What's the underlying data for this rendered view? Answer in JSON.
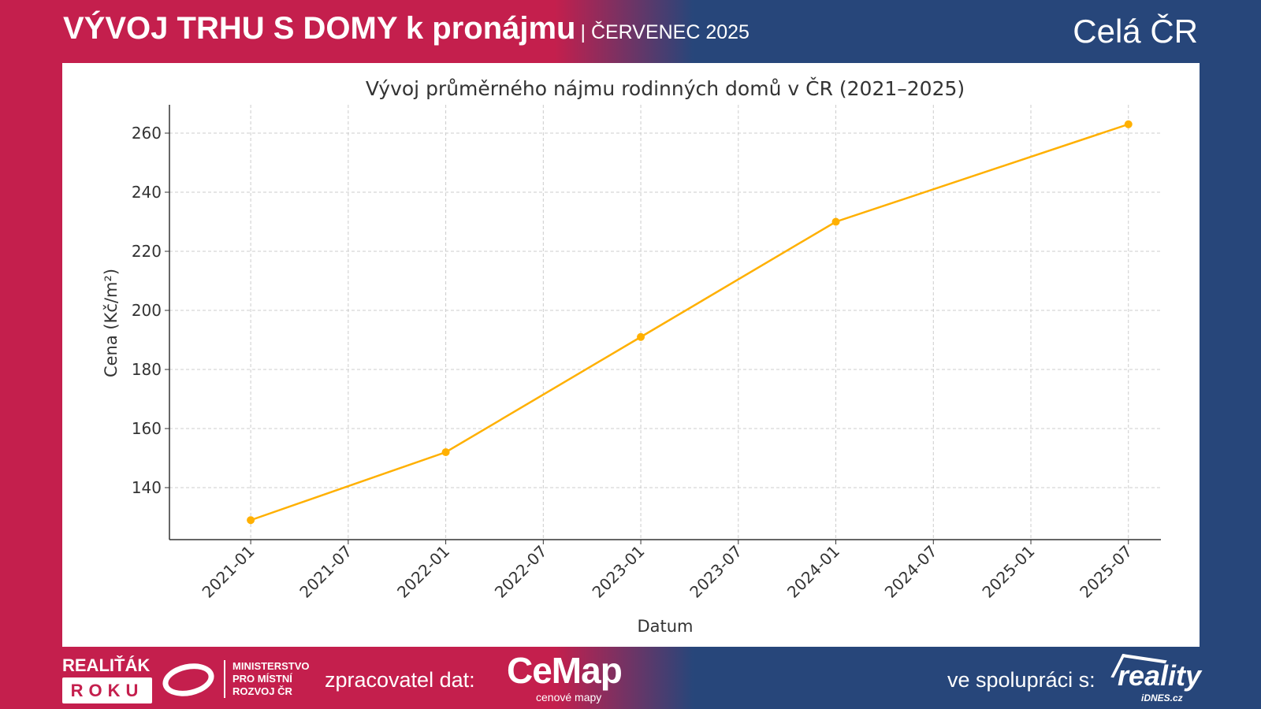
{
  "header": {
    "title": "VÝVOJ TRHU S DOMY k pronájmu",
    "subtitle": "| ČERVENEC 2025",
    "region": "Celá ČR"
  },
  "footer": {
    "badge_top": "REALIŤÁK",
    "badge_bottom": "ROKU",
    "ministry": [
      "MINISTERSTVO",
      "PRO MÍSTNÍ",
      "ROZVOJ ČR"
    ],
    "processor_label": "zpracovatel dat:",
    "cemap_logo": "CeMap",
    "cemap_tagline": "cenové mapy",
    "partner_label": "ve spolupráci s:",
    "reality_logo": "reality",
    "reality_sub": "iDNES.cz"
  },
  "colors": {
    "red": "#c41f4d",
    "blue": "#27467a",
    "line": "#ffb000"
  },
  "chart_data": {
    "type": "line",
    "title": "Vývoj průměrného nájmu rodinných domů v ČR (2021–2025)",
    "xlabel": "Datum",
    "ylabel": "Cena (Kč/m²)",
    "x": [
      "2021-01",
      "2022-01",
      "2023-01",
      "2024-01",
      "2025-07"
    ],
    "values": [
      129,
      152,
      191,
      230,
      263
    ],
    "xticks": [
      "2021-01",
      "2021-07",
      "2022-01",
      "2022-07",
      "2023-01",
      "2023-07",
      "2024-01",
      "2024-07",
      "2025-01",
      "2025-07"
    ],
    "yticks": [
      140,
      160,
      180,
      200,
      220,
      240,
      260
    ],
    "ylim": [
      122.4,
      269.6
    ],
    "xlim": [
      "2020-08",
      "2025-09"
    ],
    "grid": true
  }
}
